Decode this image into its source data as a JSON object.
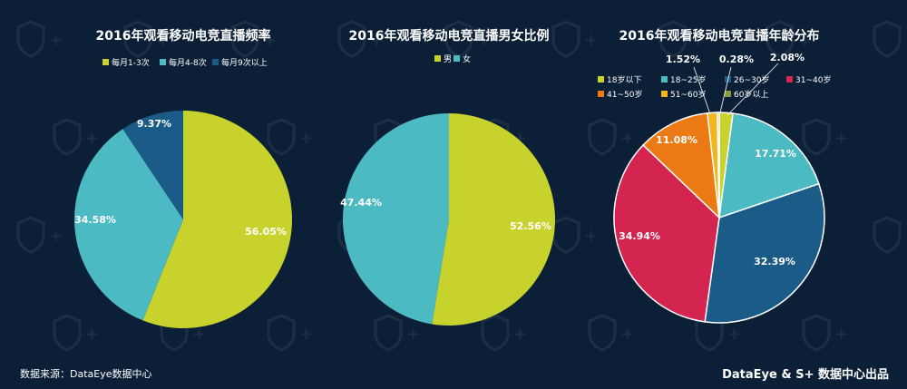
{
  "chart_data": [
    {
      "type": "pie",
      "title": "2016年观看移动电竞直播频率",
      "categories": [
        "每月1-3次",
        "每月4-8次",
        "每月9次以上"
      ],
      "values": [
        56.05,
        34.58,
        9.37
      ],
      "colors": [
        "#c8d22d",
        "#4bbac2",
        "#1a5b87"
      ],
      "value_labels": [
        "56.05%",
        "34.58%",
        "9.37%"
      ],
      "legend_position": "top"
    },
    {
      "type": "pie",
      "title": "2016年观看移动电竞直播男女比例",
      "categories": [
        "男",
        "女"
      ],
      "values": [
        52.56,
        47.44
      ],
      "colors": [
        "#c8d22d",
        "#4bbac2"
      ],
      "value_labels": [
        "52.56%",
        "47.44%"
      ],
      "legend_position": "top"
    },
    {
      "type": "pie",
      "title": "2016年观看移动电竞直播年龄分布",
      "categories": [
        "18岁以下",
        "18~25岁",
        "26~30岁",
        "31~40岁",
        "41~50岁",
        "51~60岁",
        "60岁以上"
      ],
      "values": [
        2.08,
        17.71,
        32.39,
        34.94,
        11.08,
        1.52,
        0.28
      ],
      "colors": [
        "#c8d22d",
        "#4bbac2",
        "#1a5b87",
        "#d42450",
        "#ec7a14",
        "#f2b61c",
        "#8a9a3c"
      ],
      "value_labels": [
        "2.08%",
        "17.71%",
        "32.39%",
        "34.94%",
        "11.08%",
        "1.52%",
        "0.28%"
      ],
      "legend_position": "top"
    }
  ],
  "footer": {
    "source": "数据来源：DataEye数据中心",
    "brand": "DataEye & S+ 数据中心出品"
  }
}
